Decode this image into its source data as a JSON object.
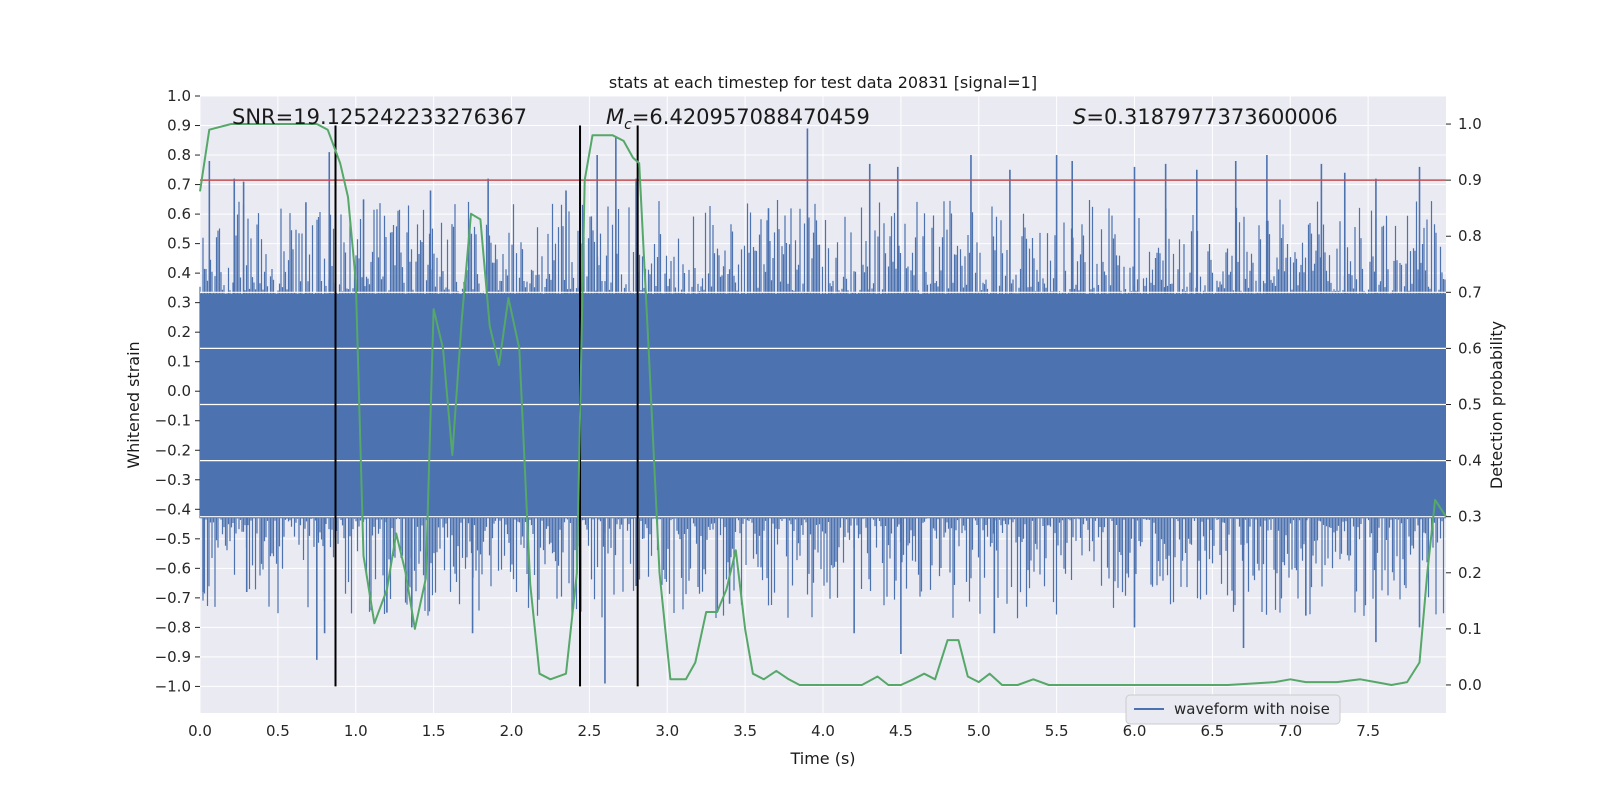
{
  "chart_data": {
    "type": "line",
    "title": "stats at each timestep for test data 20831 [signal=1]",
    "xlabel": "Time (s)",
    "ylabel": "Whitened strain",
    "y2label": "Detection probability",
    "xlim": [
      0.0,
      8.0
    ],
    "ylim": [
      -1.09,
      1.0
    ],
    "y2lim": [
      -0.05,
      1.05
    ],
    "xticks": [
      "0.0",
      "0.5",
      "1.0",
      "1.5",
      "2.0",
      "2.5",
      "3.0",
      "3.5",
      "4.0",
      "4.5",
      "5.0",
      "5.5",
      "6.0",
      "6.5",
      "7.0",
      "7.5"
    ],
    "xtick_values": [
      0.0,
      0.5,
      1.0,
      1.5,
      2.0,
      2.5,
      3.0,
      3.5,
      4.0,
      4.5,
      5.0,
      5.5,
      6.0,
      6.5,
      7.0,
      7.5
    ],
    "yticks": [
      "1.0",
      "0.9",
      "0.8",
      "0.7",
      "0.6",
      "0.5",
      "0.4",
      "0.3",
      "0.2",
      "0.1",
      "0.0",
      "−0.1",
      "−0.2",
      "−0.3",
      "−0.4",
      "−0.5",
      "−0.6",
      "−0.7",
      "−0.8",
      "−0.9",
      "−1.0"
    ],
    "ytick_values": [
      1.0,
      0.9,
      0.8,
      0.7,
      0.6,
      0.5,
      0.4,
      0.3,
      0.2,
      0.1,
      0.0,
      -0.1,
      -0.2,
      -0.3,
      -0.4,
      -0.5,
      -0.6,
      -0.7,
      -0.8,
      -0.9,
      -1.0
    ],
    "y2ticks": [
      "1.0",
      "0.9",
      "0.8",
      "0.7",
      "0.6",
      "0.5",
      "0.4",
      "0.3",
      "0.2",
      "0.1",
      "0.0"
    ],
    "y2tick_values": [
      1.0,
      0.9,
      0.8,
      0.7,
      0.6,
      0.5,
      0.4,
      0.3,
      0.2,
      0.1,
      0.0
    ],
    "annotations": {
      "snr": "SNR=19.125242233276367",
      "mc_symbol": "M",
      "mc_sub": "c",
      "mc_value": "=6.420957088470459",
      "s_symbol": "S",
      "s_value": "=0.3187977373600006"
    },
    "threshold": {
      "axis": "y2",
      "value": 0.9,
      "color": "#c44e52"
    },
    "vertical_markers": {
      "times": [
        0.87,
        2.44,
        2.81
      ],
      "color": "#000000"
    },
    "waveform": {
      "name": "waveform with noise",
      "color": "#4c72b0",
      "core_range": [
        -0.43,
        0.33
      ],
      "positive_peaks": [
        {
          "t": 0.06,
          "v": 0.78
        },
        {
          "t": 0.22,
          "v": 0.72
        },
        {
          "t": 0.28,
          "v": 0.71
        },
        {
          "t": 0.68,
          "v": 0.64
        },
        {
          "t": 0.83,
          "v": 0.81
        },
        {
          "t": 1.05,
          "v": 0.65
        },
        {
          "t": 1.48,
          "v": 0.68
        },
        {
          "t": 1.85,
          "v": 0.72
        },
        {
          "t": 2.35,
          "v": 0.68
        },
        {
          "t": 2.55,
          "v": 0.8
        },
        {
          "t": 2.67,
          "v": 0.86
        },
        {
          "t": 2.8,
          "v": 0.72
        },
        {
          "t": 3.65,
          "v": 0.62
        },
        {
          "t": 3.9,
          "v": 0.89
        },
        {
          "t": 4.3,
          "v": 0.77
        },
        {
          "t": 4.48,
          "v": 0.76
        },
        {
          "t": 4.95,
          "v": 0.8
        },
        {
          "t": 5.2,
          "v": 0.75
        },
        {
          "t": 5.5,
          "v": 0.8
        },
        {
          "t": 5.6,
          "v": 0.78
        },
        {
          "t": 6.0,
          "v": 0.76
        },
        {
          "t": 6.2,
          "v": 0.77
        },
        {
          "t": 6.4,
          "v": 0.75
        },
        {
          "t": 6.65,
          "v": 0.78
        },
        {
          "t": 6.85,
          "v": 0.8
        },
        {
          "t": 7.2,
          "v": 0.77
        },
        {
          "t": 7.35,
          "v": 0.74
        },
        {
          "t": 7.55,
          "v": 0.72
        },
        {
          "t": 7.83,
          "v": 0.76
        }
      ],
      "negative_peaks": [
        {
          "t": 0.02,
          "v": -0.68
        },
        {
          "t": 0.3,
          "v": -0.68
        },
        {
          "t": 0.75,
          "v": -0.91
        },
        {
          "t": 0.8,
          "v": -0.82
        },
        {
          "t": 1.2,
          "v": -0.75
        },
        {
          "t": 1.36,
          "v": -0.8
        },
        {
          "t": 1.75,
          "v": -0.82
        },
        {
          "t": 2.6,
          "v": -0.99
        },
        {
          "t": 2.8,
          "v": -0.66
        },
        {
          "t": 3.4,
          "v": -0.72
        },
        {
          "t": 4.2,
          "v": -0.82
        },
        {
          "t": 4.5,
          "v": -0.89
        },
        {
          "t": 5.1,
          "v": -0.82
        },
        {
          "t": 6.0,
          "v": -0.8
        },
        {
          "t": 6.7,
          "v": -0.87
        },
        {
          "t": 7.1,
          "v": -0.76
        },
        {
          "t": 7.55,
          "v": -0.85
        },
        {
          "t": 7.83,
          "v": -0.8
        }
      ]
    },
    "detection_probability": {
      "color": "#55a868",
      "t": [
        0.0,
        0.06,
        0.2,
        0.4,
        0.6,
        0.75,
        0.82,
        0.9,
        0.95,
        1.0,
        1.05,
        1.12,
        1.2,
        1.26,
        1.32,
        1.38,
        1.45,
        1.5,
        1.56,
        1.62,
        1.68,
        1.74,
        1.8,
        1.86,
        1.92,
        1.98,
        2.05,
        2.12,
        2.18,
        2.25,
        2.35,
        2.42,
        2.47,
        2.52,
        2.58,
        2.65,
        2.72,
        2.78,
        2.82,
        2.88,
        2.95,
        3.02,
        3.12,
        3.18,
        3.25,
        3.32,
        3.38,
        3.44,
        3.5,
        3.55,
        3.62,
        3.7,
        3.78,
        3.85,
        3.95,
        4.05,
        4.15,
        4.25,
        4.35,
        4.42,
        4.5,
        4.58,
        4.65,
        4.72,
        4.8,
        4.87,
        4.93,
        5.0,
        5.07,
        5.15,
        5.25,
        5.35,
        5.45,
        5.6,
        5.8,
        6.0,
        6.3,
        6.6,
        6.9,
        7.0,
        7.1,
        7.3,
        7.45,
        7.55,
        7.65,
        7.75,
        7.83,
        7.88,
        7.93,
        8.0
      ],
      "p": [
        0.88,
        0.99,
        1.0,
        1.0,
        1.0,
        1.0,
        0.99,
        0.93,
        0.87,
        0.72,
        0.23,
        0.11,
        0.17,
        0.27,
        0.2,
        0.1,
        0.19,
        0.67,
        0.6,
        0.41,
        0.65,
        0.84,
        0.83,
        0.64,
        0.57,
        0.69,
        0.6,
        0.18,
        0.02,
        0.01,
        0.02,
        0.2,
        0.9,
        0.98,
        0.98,
        0.98,
        0.97,
        0.94,
        0.93,
        0.6,
        0.2,
        0.01,
        0.01,
        0.04,
        0.13,
        0.13,
        0.17,
        0.24,
        0.1,
        0.02,
        0.01,
        0.025,
        0.01,
        0.0,
        0.0,
        0.0,
        0.0,
        0.0,
        0.015,
        0.0,
        0.0,
        0.01,
        0.02,
        0.01,
        0.08,
        0.08,
        0.015,
        0.005,
        0.02,
        0.0,
        0.0,
        0.01,
        0.0,
        0.0,
        0.0,
        0.0,
        0.0,
        0.0,
        0.005,
        0.01,
        0.005,
        0.005,
        0.01,
        0.005,
        0.0,
        0.005,
        0.04,
        0.2,
        0.33,
        0.3
      ]
    },
    "legend": {
      "label": "waveform with noise",
      "placement": "lower-right"
    }
  }
}
